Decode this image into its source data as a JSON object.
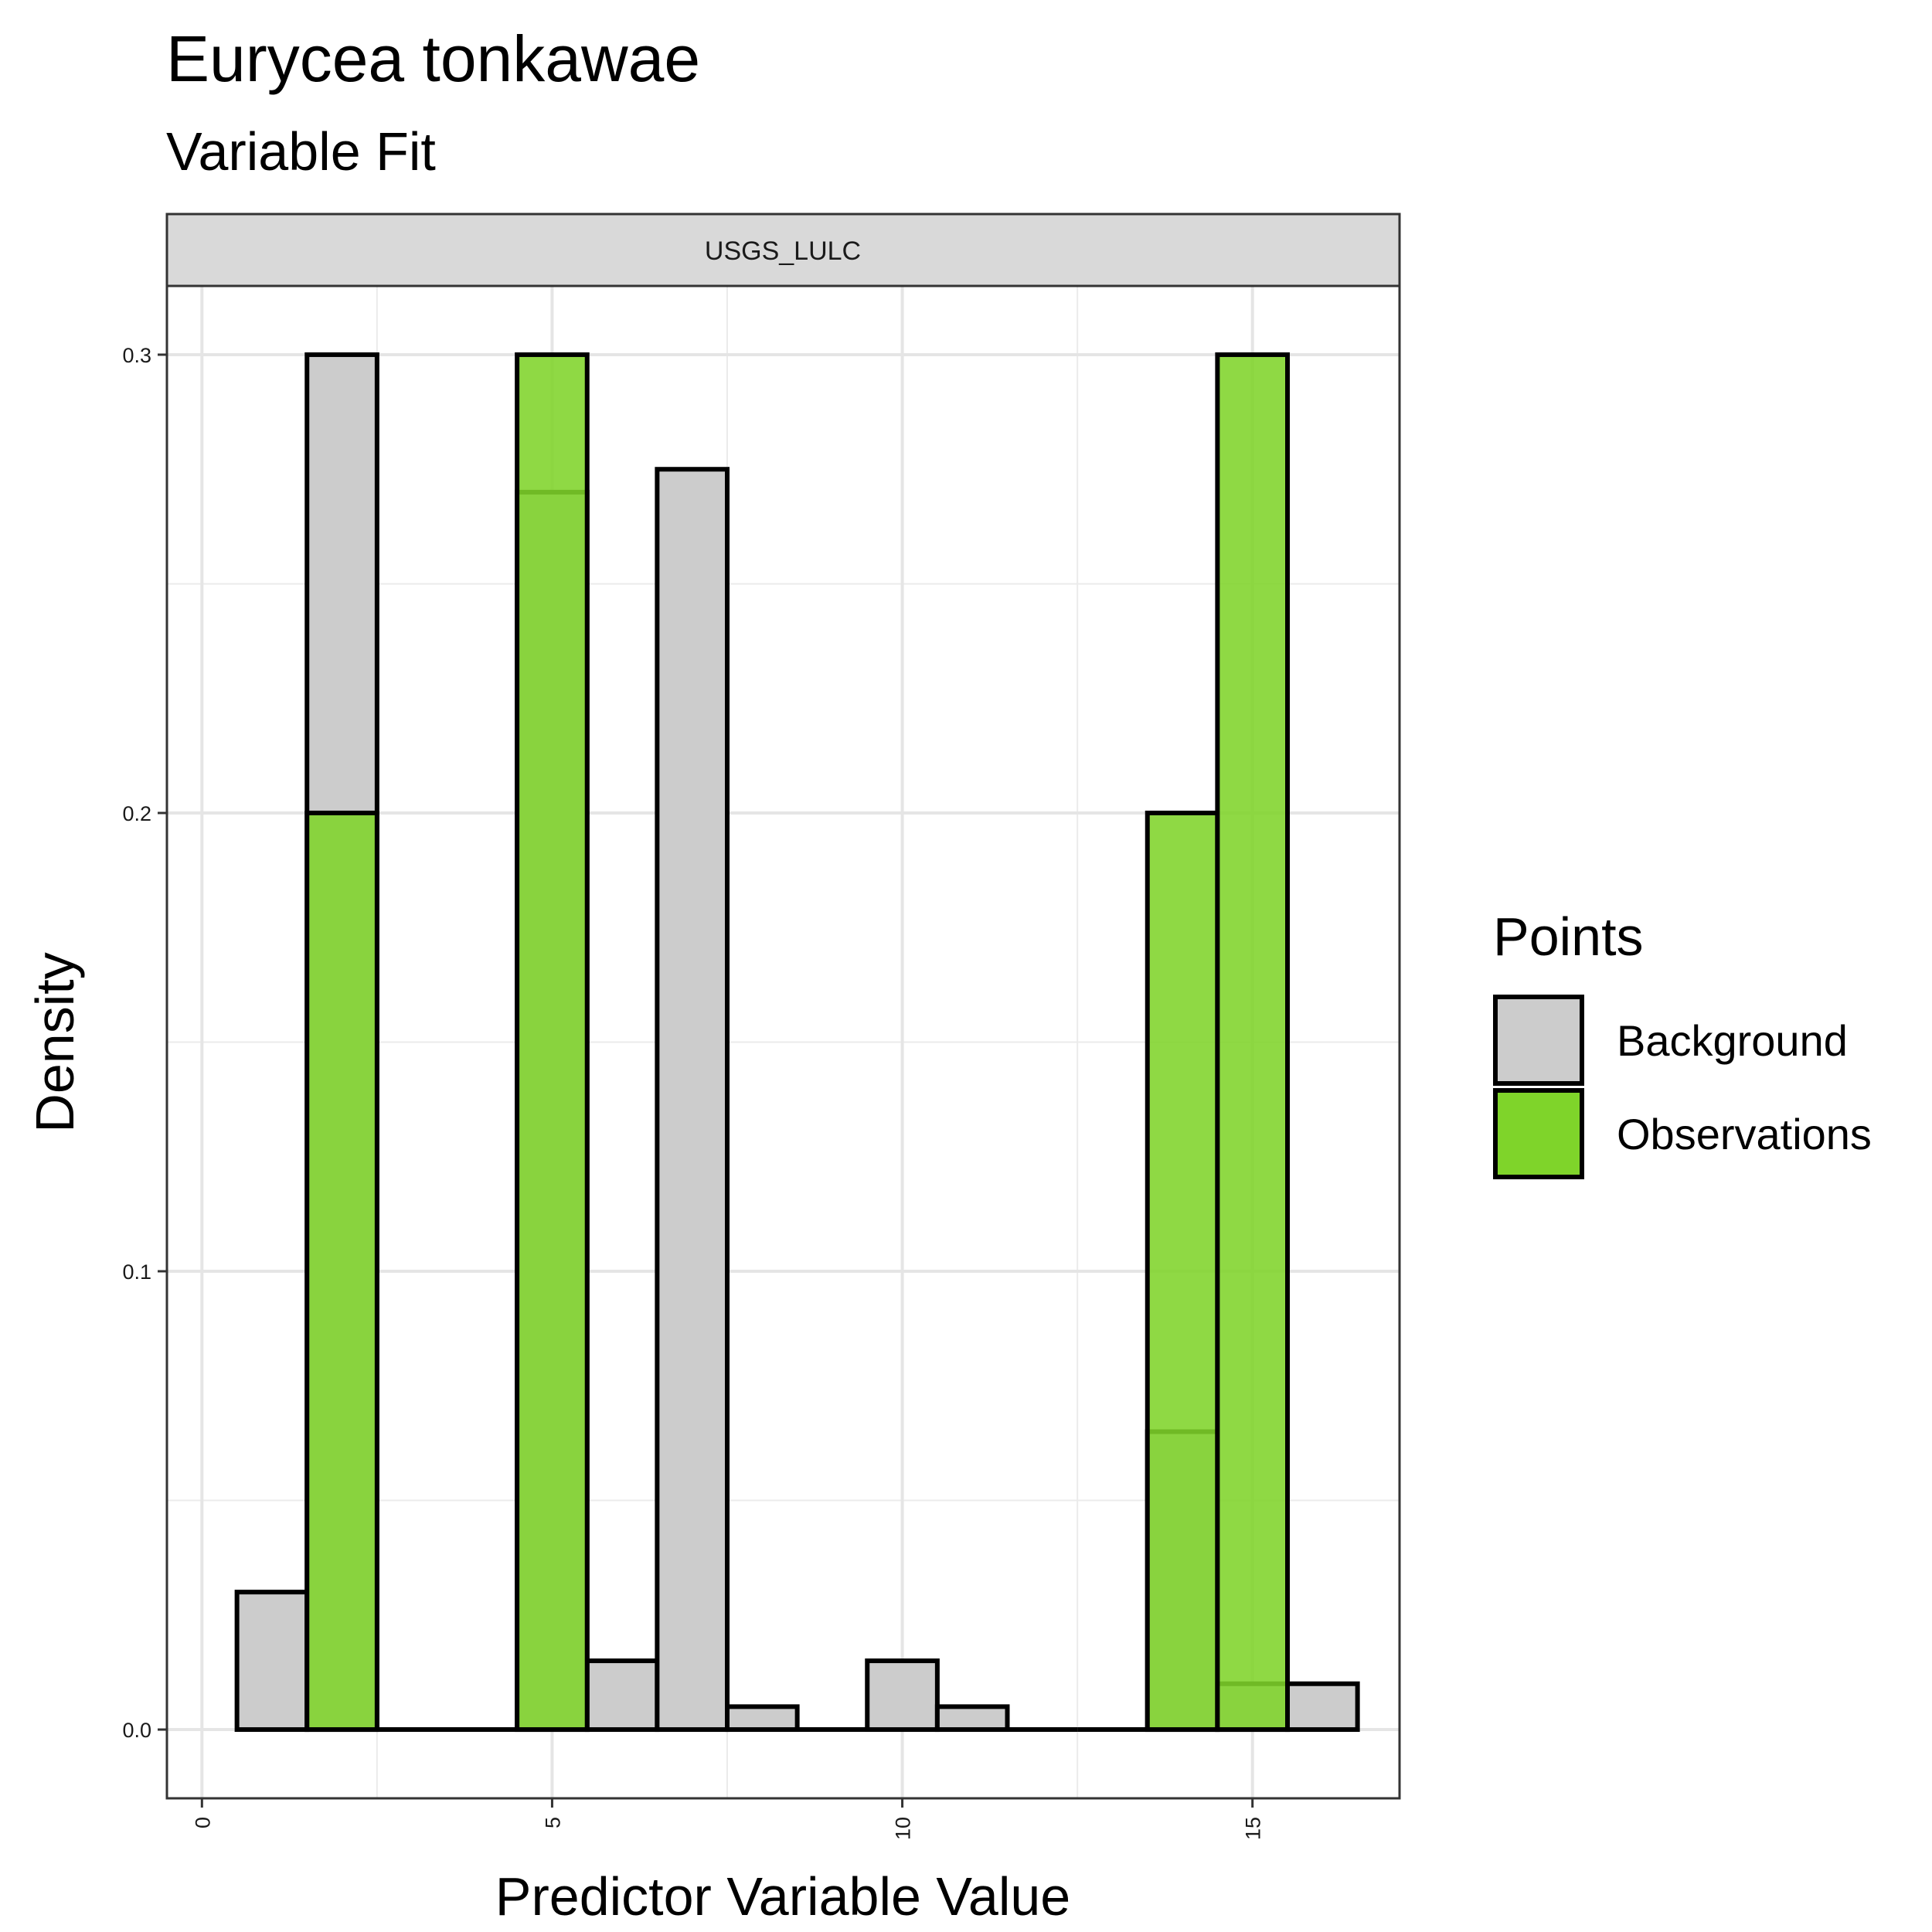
{
  "chart_data": {
    "type": "bar",
    "title": "Eurycea tonkawae",
    "subtitle": "Variable Fit",
    "facet_label": "USGS_LULC",
    "xlabel": "Predictor Variable Value",
    "ylabel": "Density",
    "xlim": [
      -0.5,
      17.1
    ],
    "ylim": [
      -0.015,
      0.315
    ],
    "x_ticks": [
      0,
      5,
      10,
      15
    ],
    "x_tick_labels": [
      "0",
      "5",
      "10",
      "15"
    ],
    "y_ticks": [
      0.0,
      0.1,
      0.2,
      0.3
    ],
    "y_tick_labels": [
      "0.0",
      "0.1",
      "0.2",
      "0.3"
    ],
    "grid": true,
    "bin_width": 1,
    "legend": {
      "title": "Points",
      "position": "right",
      "entries": [
        "Background",
        "Observations"
      ]
    },
    "series": [
      {
        "name": "Background",
        "color": "#cccccc",
        "x": [
          1,
          2,
          3,
          4,
          5,
          6,
          7,
          8,
          9,
          10,
          11,
          12,
          13,
          14,
          15,
          16
        ],
        "values": [
          0.03,
          0.3,
          0.0,
          0.0,
          0.27,
          0.015,
          0.275,
          0.005,
          0.0,
          0.015,
          0.005,
          0.0,
          0.0,
          0.065,
          0.01,
          0.01
        ]
      },
      {
        "name": "Observations",
        "color": "#7fd42a",
        "x": [
          2,
          5,
          14,
          15
        ],
        "values": [
          0.2,
          0.3,
          0.2,
          0.3
        ]
      }
    ]
  }
}
